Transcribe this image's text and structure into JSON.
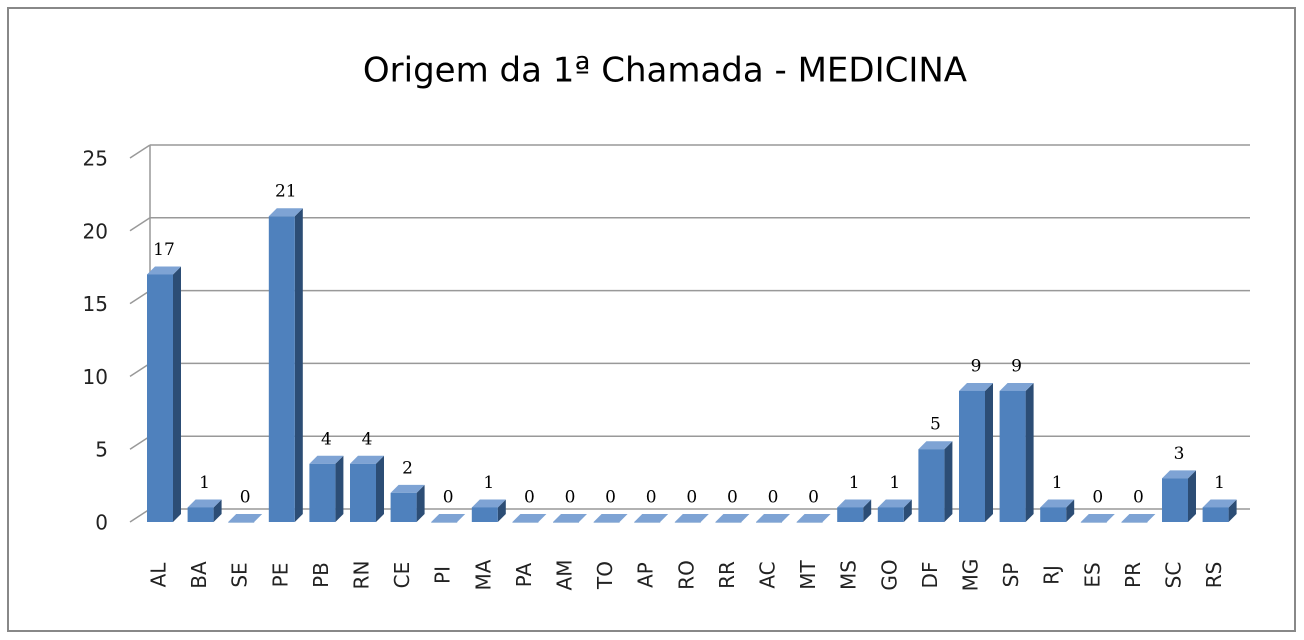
{
  "chart_data": {
    "type": "bar3d",
    "title": "Origem da 1ª Chamada - MEDICINA",
    "categories": [
      "AL",
      "BA",
      "SE",
      "PE",
      "PB",
      "RN",
      "CE",
      "PI",
      "MA",
      "PA",
      "AM",
      "TO",
      "AP",
      "RO",
      "RR",
      "AC",
      "MT",
      "MS",
      "GO",
      "DF",
      "MG",
      "SP",
      "RJ",
      "ES",
      "PR",
      "SC",
      "RS"
    ],
    "values": [
      17,
      1,
      0,
      21,
      4,
      4,
      2,
      0,
      1,
      0,
      0,
      0,
      0,
      0,
      0,
      0,
      0,
      1,
      1,
      5,
      9,
      9,
      1,
      0,
      0,
      3,
      1
    ],
    "color": "#4f81bd",
    "ylim": [
      0,
      25
    ],
    "yticks": [
      0,
      5,
      10,
      15,
      20,
      25
    ],
    "grid": true
  }
}
